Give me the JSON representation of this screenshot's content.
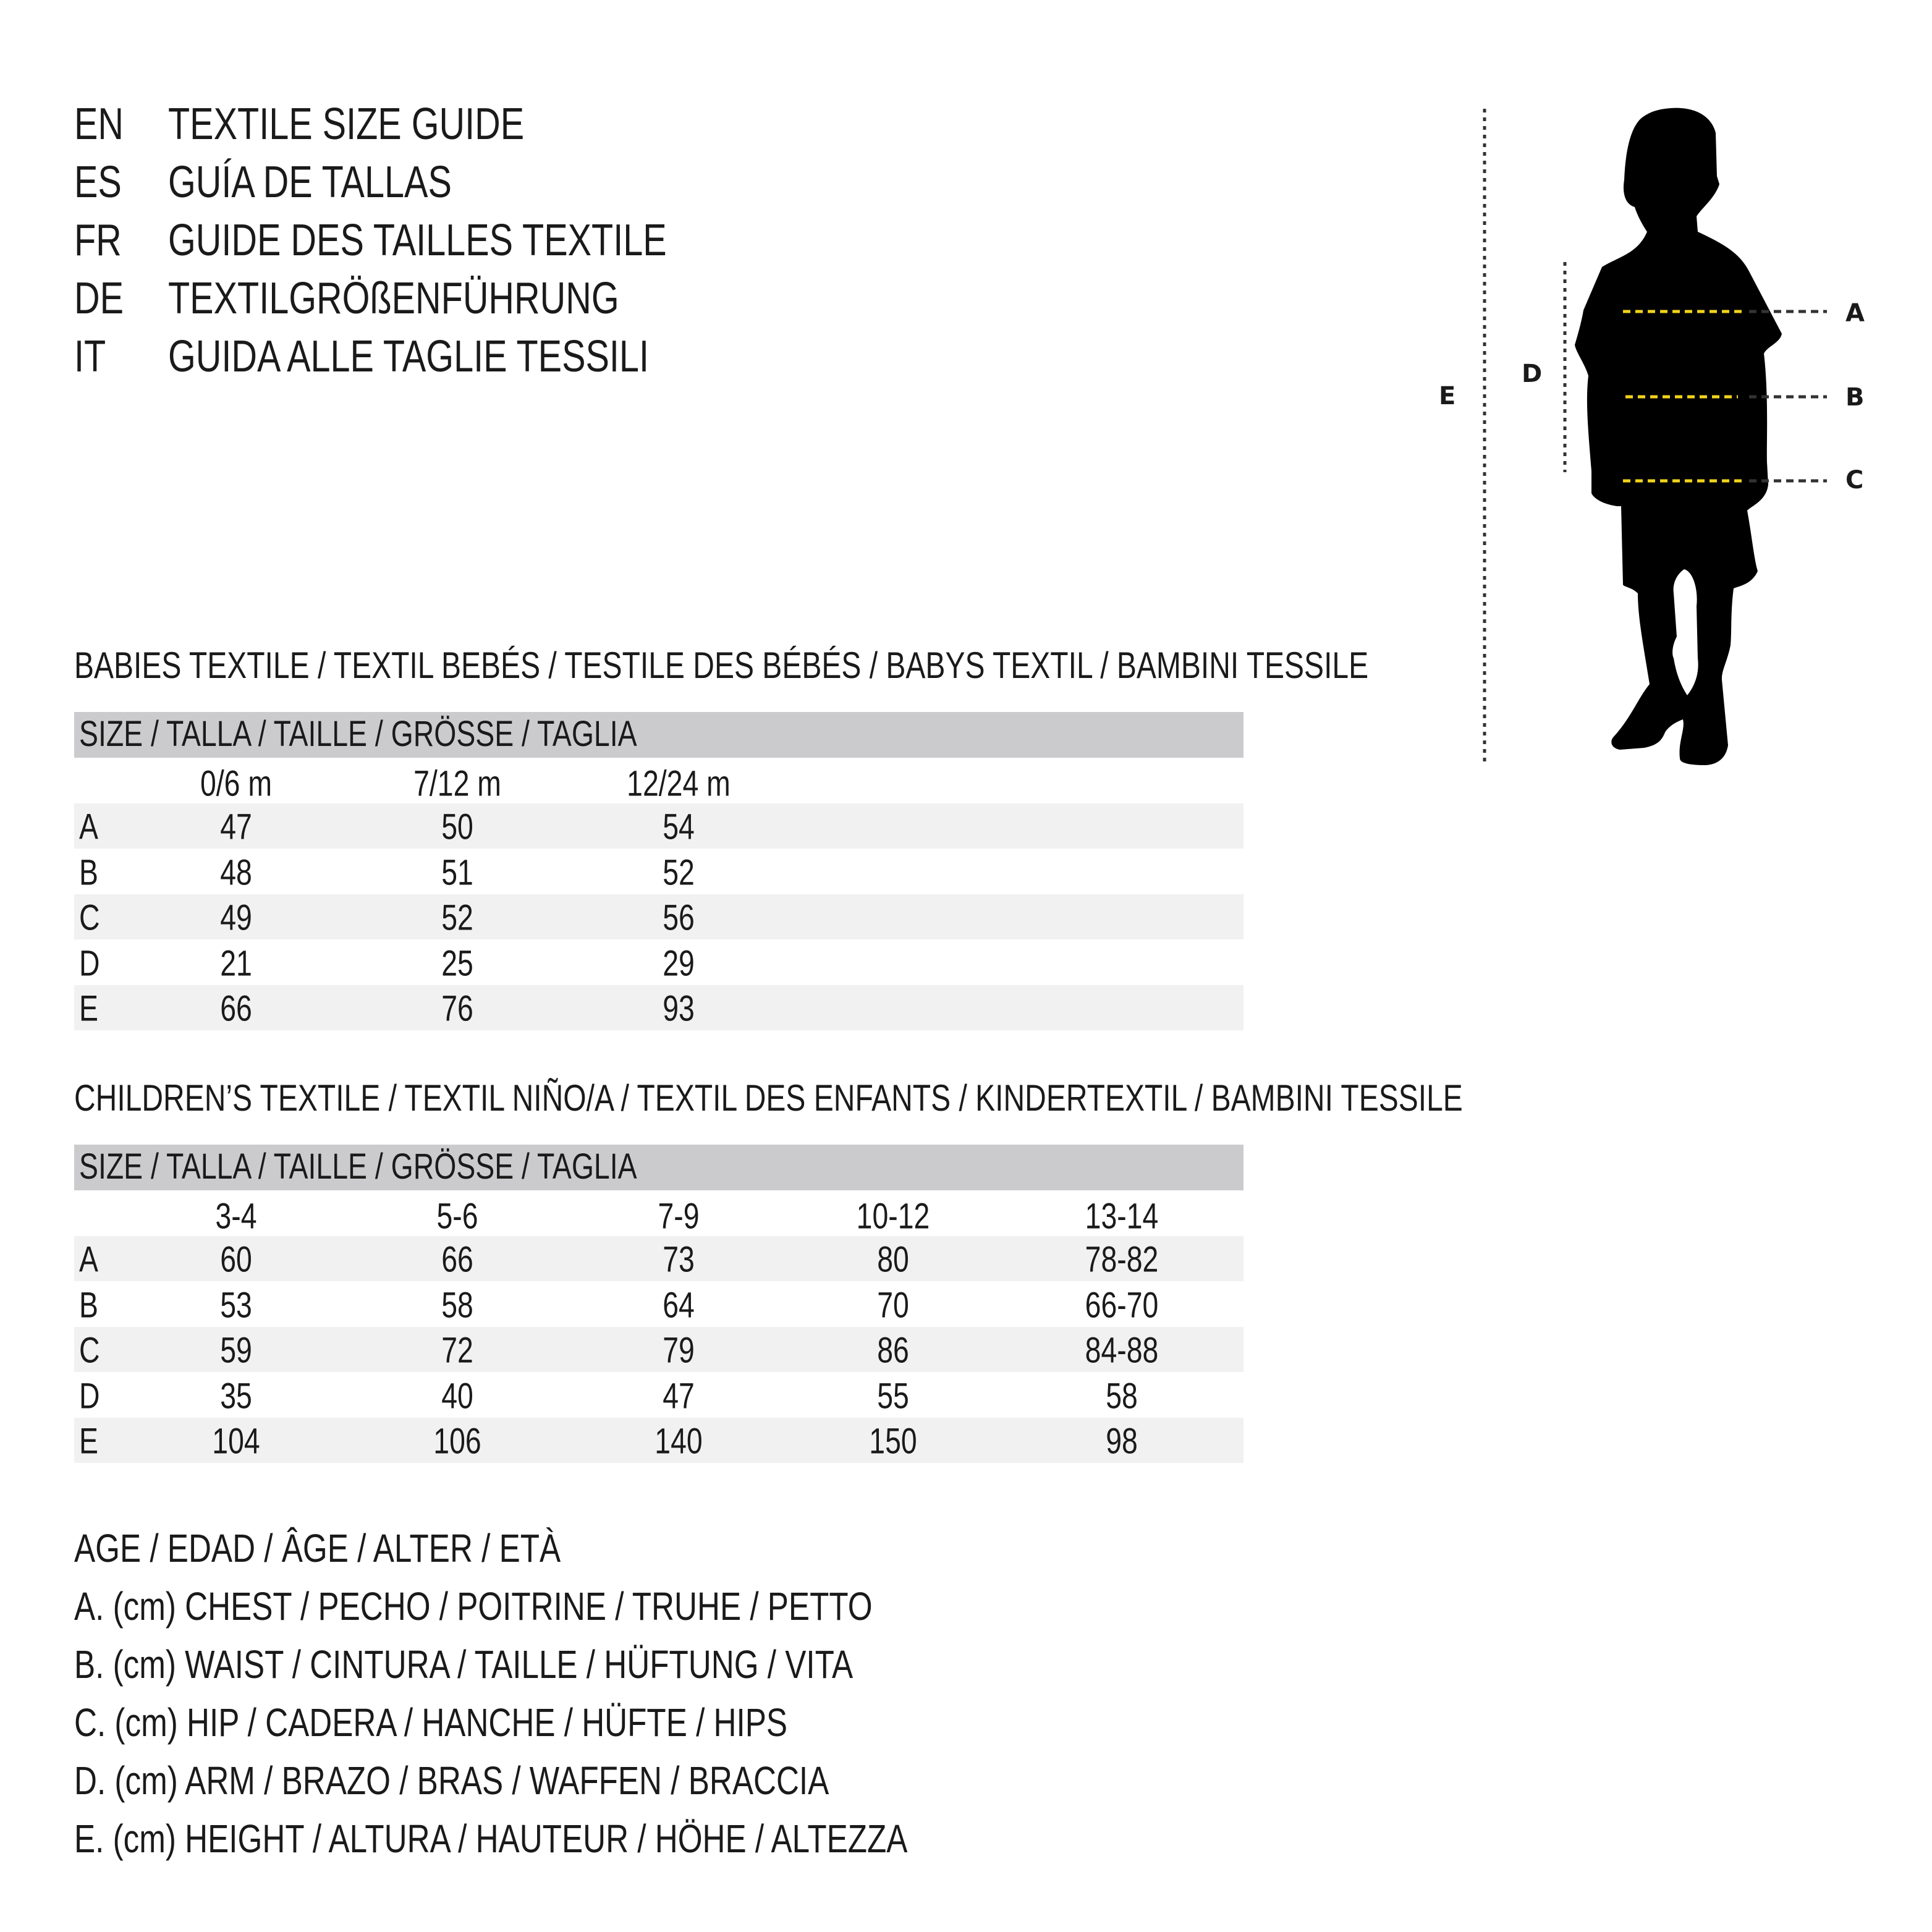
{
  "titles": [
    {
      "code": "EN",
      "text": "TEXTILE SIZE GUIDE"
    },
    {
      "code": "ES",
      "text": "GUÍA DE TALLAS"
    },
    {
      "code": "FR",
      "text": "GUIDE DES TAILLES TEXTILE"
    },
    {
      "code": "DE",
      "text": "TEXTILGRÖßENFÜHRUNG"
    },
    {
      "code": "IT",
      "text": "GUIDA ALLE TAGLIE TESSILI"
    }
  ],
  "diagram": {
    "labels": {
      "A": "A",
      "B": "B",
      "C": "C",
      "D": "D",
      "E": "E"
    },
    "colors": {
      "silhouette": "#000000",
      "measure_line": "#f2d31b",
      "guide_line": "#333333"
    }
  },
  "babies": {
    "heading": "BABIES TEXTILE / TEXTIL BEBÉS / TESTILE DES BÉBÉS / BABYS TEXTIL / BAMBINI TESSILE",
    "size_header": "SIZE / TALLA / TAILLE / GRÖSSE / TAGLIA",
    "columns": [
      "0/6 m",
      "7/12 m",
      "12/24 m"
    ],
    "rows": [
      {
        "label": "A",
        "values": [
          "47",
          "50",
          "54"
        ]
      },
      {
        "label": "B",
        "values": [
          "48",
          "51",
          "52"
        ]
      },
      {
        "label": "C",
        "values": [
          "49",
          "52",
          "56"
        ]
      },
      {
        "label": "D",
        "values": [
          "21",
          "25",
          "29"
        ]
      },
      {
        "label": "E",
        "values": [
          "66",
          "76",
          "93"
        ]
      }
    ]
  },
  "children": {
    "heading": "CHILDREN’S TEXTILE / TEXTIL NIÑO/A / TEXTIL DES ENFANTS / KINDERTEXTIL / BAMBINI TESSILE",
    "size_header": "SIZE / TALLA / TAILLE / GRÖSSE / TAGLIA",
    "columns": [
      "3-4",
      "5-6",
      "7-9",
      "10-12",
      "13-14"
    ],
    "rows": [
      {
        "label": "A",
        "values": [
          "60",
          "66",
          "73",
          "80",
          "78-82"
        ]
      },
      {
        "label": "B",
        "values": [
          "53",
          "58",
          "64",
          "70",
          "66-70"
        ]
      },
      {
        "label": "C",
        "values": [
          "59",
          "72",
          "79",
          "86",
          "84-88"
        ]
      },
      {
        "label": "D",
        "values": [
          "35",
          "40",
          "47",
          "55",
          "58"
        ]
      },
      {
        "label": "E",
        "values": [
          "104",
          "106",
          "140",
          "150",
          "98"
        ]
      }
    ]
  },
  "legend": [
    "AGE / EDAD / ÂGE / ALTER / ETÀ",
    "A. (cm) CHEST / PECHO / POITRINE / TRUHE / PETTO",
    "B. (cm) WAIST / CINTURA / TAILLE / HÜFTUNG / VITA",
    "C. (cm) HIP / CADERA / HANCHE / HÜFTE / HIPS",
    "D. (cm) ARM / BRAZO / BRAS / WAFFEN / BRACCIA",
    "E. (cm) HEIGHT / ALTURA / HAUTEUR / HÖHE / ALTEZZA"
  ]
}
